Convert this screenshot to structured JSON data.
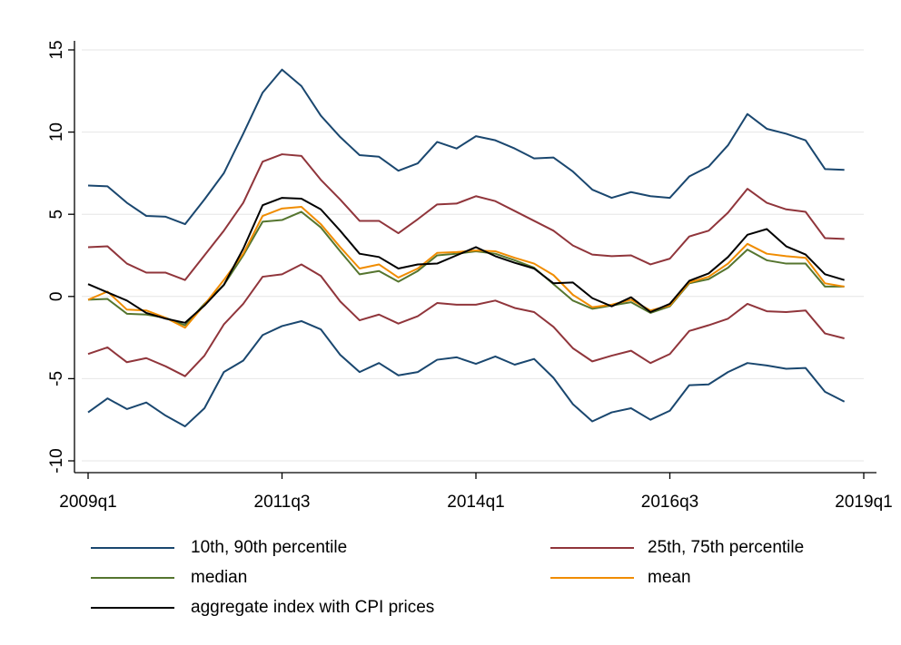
{
  "chart_data": {
    "type": "line",
    "x": [
      "2009q1",
      "2009q2",
      "2009q3",
      "2009q4",
      "2010q1",
      "2010q2",
      "2010q3",
      "2010q4",
      "2011q1",
      "2011q2",
      "2011q3",
      "2011q4",
      "2012q1",
      "2012q2",
      "2012q3",
      "2012q4",
      "2013q1",
      "2013q2",
      "2013q3",
      "2013q4",
      "2014q1",
      "2014q2",
      "2014q3",
      "2014q4",
      "2015q1",
      "2015q2",
      "2015q3",
      "2015q4",
      "2016q1",
      "2016q2",
      "2016q3",
      "2016q4",
      "2017q1",
      "2017q2",
      "2017q3",
      "2017q4",
      "2018q1",
      "2018q2",
      "2018q3",
      "2018q4"
    ],
    "xlim": [
      "2009q1",
      "2019q1"
    ],
    "xticks": [
      "2009q1",
      "2011q3",
      "2014q1",
      "2016q3",
      "2019q1"
    ],
    "ylim": [
      -10,
      15
    ],
    "yticks": [
      -10,
      -5,
      0,
      5,
      10,
      15
    ],
    "grid": true,
    "series": [
      {
        "name": "10th, 90th percentile",
        "color": "#1a476f",
        "values": [
          6.75,
          6.7,
          5.7,
          4.9,
          4.85,
          4.4,
          5.9,
          7.5,
          9.9,
          12.4,
          13.8,
          12.8,
          11.0,
          9.7,
          8.6,
          8.5,
          7.65,
          8.1,
          9.4,
          9.0,
          9.75,
          9.5,
          9.0,
          8.4,
          8.45,
          7.6,
          6.5,
          6.0,
          6.35,
          6.1,
          6.0,
          7.3,
          7.9,
          9.2,
          11.1,
          10.2,
          9.9,
          9.5,
          7.75,
          7.7
        ],
        "values_lower": [
          -7.05,
          -6.2,
          -6.85,
          -6.45,
          -7.25,
          -7.9,
          -6.8,
          -4.6,
          -3.9,
          -2.35,
          -1.8,
          -1.5,
          -2.0,
          -3.55,
          -4.6,
          -4.05,
          -4.8,
          -4.6,
          -3.85,
          -3.7,
          -4.1,
          -3.65,
          -4.15,
          -3.8,
          -4.95,
          -6.55,
          -7.6,
          -7.05,
          -6.8,
          -7.5,
          -6.95,
          -5.4,
          -5.35,
          -4.6,
          -4.05,
          -4.2,
          -4.4,
          -4.35,
          -5.8,
          -6.4
        ]
      },
      {
        "name": "25th, 75th percentile",
        "color": "#90353b",
        "values": [
          3.0,
          3.05,
          2.0,
          1.45,
          1.45,
          1.0,
          2.5,
          4.0,
          5.7,
          8.2,
          8.65,
          8.55,
          7.1,
          5.9,
          4.6,
          4.6,
          3.85,
          4.7,
          5.6,
          5.65,
          6.1,
          5.8,
          5.2,
          4.6,
          4.0,
          3.1,
          2.55,
          2.45,
          2.5,
          1.95,
          2.3,
          3.65,
          4.0,
          5.1,
          6.55,
          5.7,
          5.3,
          5.15,
          3.55,
          3.5
        ],
        "values_lower": [
          -3.5,
          -3.1,
          -4.0,
          -3.75,
          -4.25,
          -4.85,
          -3.6,
          -1.7,
          -0.45,
          1.2,
          1.35,
          1.95,
          1.25,
          -0.3,
          -1.45,
          -1.1,
          -1.65,
          -1.2,
          -0.4,
          -0.5,
          -0.5,
          -0.25,
          -0.7,
          -0.95,
          -1.85,
          -3.15,
          -3.95,
          -3.6,
          -3.3,
          -4.05,
          -3.5,
          -2.1,
          -1.75,
          -1.35,
          -0.45,
          -0.9,
          -0.95,
          -0.85,
          -2.25,
          -2.55
        ]
      },
      {
        "name": "median",
        "color": "#55752f",
        "values": [
          -0.2,
          -0.15,
          -1.05,
          -1.1,
          -1.3,
          -1.75,
          -0.45,
          0.7,
          2.5,
          4.55,
          4.65,
          5.15,
          4.2,
          2.75,
          1.35,
          1.55,
          0.9,
          1.55,
          2.5,
          2.6,
          2.75,
          2.6,
          2.2,
          1.75,
          0.75,
          -0.25,
          -0.75,
          -0.55,
          -0.35,
          -1.0,
          -0.6,
          0.8,
          1.05,
          1.75,
          2.85,
          2.2,
          2.0,
          2.0,
          0.6,
          0.6
        ]
      },
      {
        "name": "mean",
        "color": "#f08c00",
        "values": [
          -0.2,
          0.3,
          -0.8,
          -0.85,
          -1.3,
          -1.9,
          -0.5,
          1.0,
          2.6,
          4.9,
          5.35,
          5.45,
          4.4,
          3.0,
          1.7,
          1.95,
          1.15,
          1.7,
          2.65,
          2.7,
          2.8,
          2.75,
          2.35,
          2.0,
          1.3,
          0.1,
          -0.65,
          -0.5,
          -0.2,
          -0.85,
          -0.55,
          0.85,
          1.2,
          2.0,
          3.2,
          2.6,
          2.45,
          2.35,
          0.8,
          0.6
        ]
      },
      {
        "name": "aggregate index with CPI prices",
        "color": "#000000",
        "values": [
          0.75,
          0.25,
          -0.25,
          -1.0,
          -1.35,
          -1.6,
          -0.55,
          0.7,
          2.9,
          5.55,
          6.0,
          5.95,
          5.3,
          4.0,
          2.6,
          2.4,
          1.7,
          1.95,
          2.0,
          2.5,
          3.0,
          2.45,
          2.05,
          1.7,
          0.8,
          0.85,
          -0.1,
          -0.6,
          -0.05,
          -0.95,
          -0.45,
          0.95,
          1.4,
          2.4,
          3.75,
          4.1,
          3.05,
          2.55,
          1.35,
          1.0
        ]
      }
    ]
  }
}
